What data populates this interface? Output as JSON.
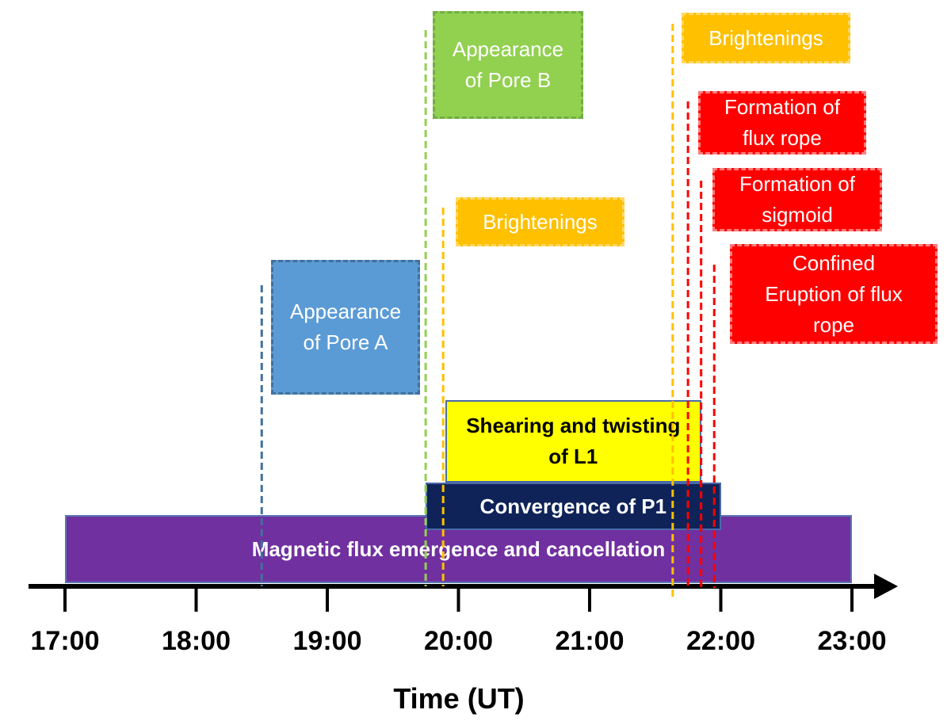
{
  "chart_data": {
    "type": "timeline",
    "xlabel": "Time (UT)",
    "xlim": [
      "17:00",
      "23:00"
    ],
    "ticks": [
      "17:00",
      "18:00",
      "19:00",
      "20:00",
      "21:00",
      "22:00",
      "23:00"
    ],
    "intervals": [
      {
        "id": "flux-emergence",
        "label": "Magnetic flux emergence and cancellation",
        "start": "17:00",
        "end": "23:00",
        "fill": "#7030a0",
        "border": "#5a78b4",
        "text_color": "#ffffff"
      },
      {
        "id": "convergence-p1",
        "label": "Convergence of P1",
        "start": "19:45",
        "end": "22:00",
        "fill": "#0f2359",
        "border": "#4a6aa8",
        "text_color": "#ffffff"
      },
      {
        "id": "shearing-l1",
        "label": "Shearing and twisting\nof L1",
        "start": "19:54",
        "end": "21:51",
        "fill": "#ffff00",
        "border": "#4a6aa8",
        "text_color": "#000000"
      }
    ],
    "events": [
      {
        "id": "pore-a",
        "label": "Appearance\nof Pore A",
        "time": "18:30",
        "line_color": "#41719c",
        "fill": "#5b9bd5",
        "border": "#41719c",
        "text_color": "#ffffff"
      },
      {
        "id": "pore-b",
        "label": "Appearance\nof Pore B",
        "time": "19:45",
        "line_color": "#92d050",
        "fill": "#92d050",
        "border": "#70ad47",
        "text_color": "#ffffff"
      },
      {
        "id": "brightenings-1",
        "label": "Brightenings",
        "time": "19:53",
        "line_color": "#ffc000",
        "fill": "#ffc000",
        "border": "#ffd966",
        "text_color": "#ffffff"
      },
      {
        "id": "brightenings-2",
        "label": "Brightenings",
        "time": "21:38",
        "line_color": "#ffc000",
        "fill": "#ffc000",
        "border": "#ffd966",
        "text_color": "#ffffff"
      },
      {
        "id": "flux-rope-formation",
        "label": "Formation of\nflux rope",
        "time": "21:45",
        "line_color": "#ff0000",
        "fill": "#ff0000",
        "border": "#ff7c7c",
        "text_color": "#ffffff"
      },
      {
        "id": "sigmoid-formation",
        "label": "Formation of\nsigmoid",
        "time": "21:51",
        "line_color": "#ff0000",
        "fill": "#ff0000",
        "border": "#ff7c7c",
        "text_color": "#ffffff"
      },
      {
        "id": "confined-eruption",
        "label": "Confined\nEruption of flux\nrope",
        "time": "21:57",
        "line_color": "#ff0000",
        "fill": "#ff0000",
        "border": "#ff7c7c",
        "text_color": "#ffffff"
      }
    ]
  }
}
